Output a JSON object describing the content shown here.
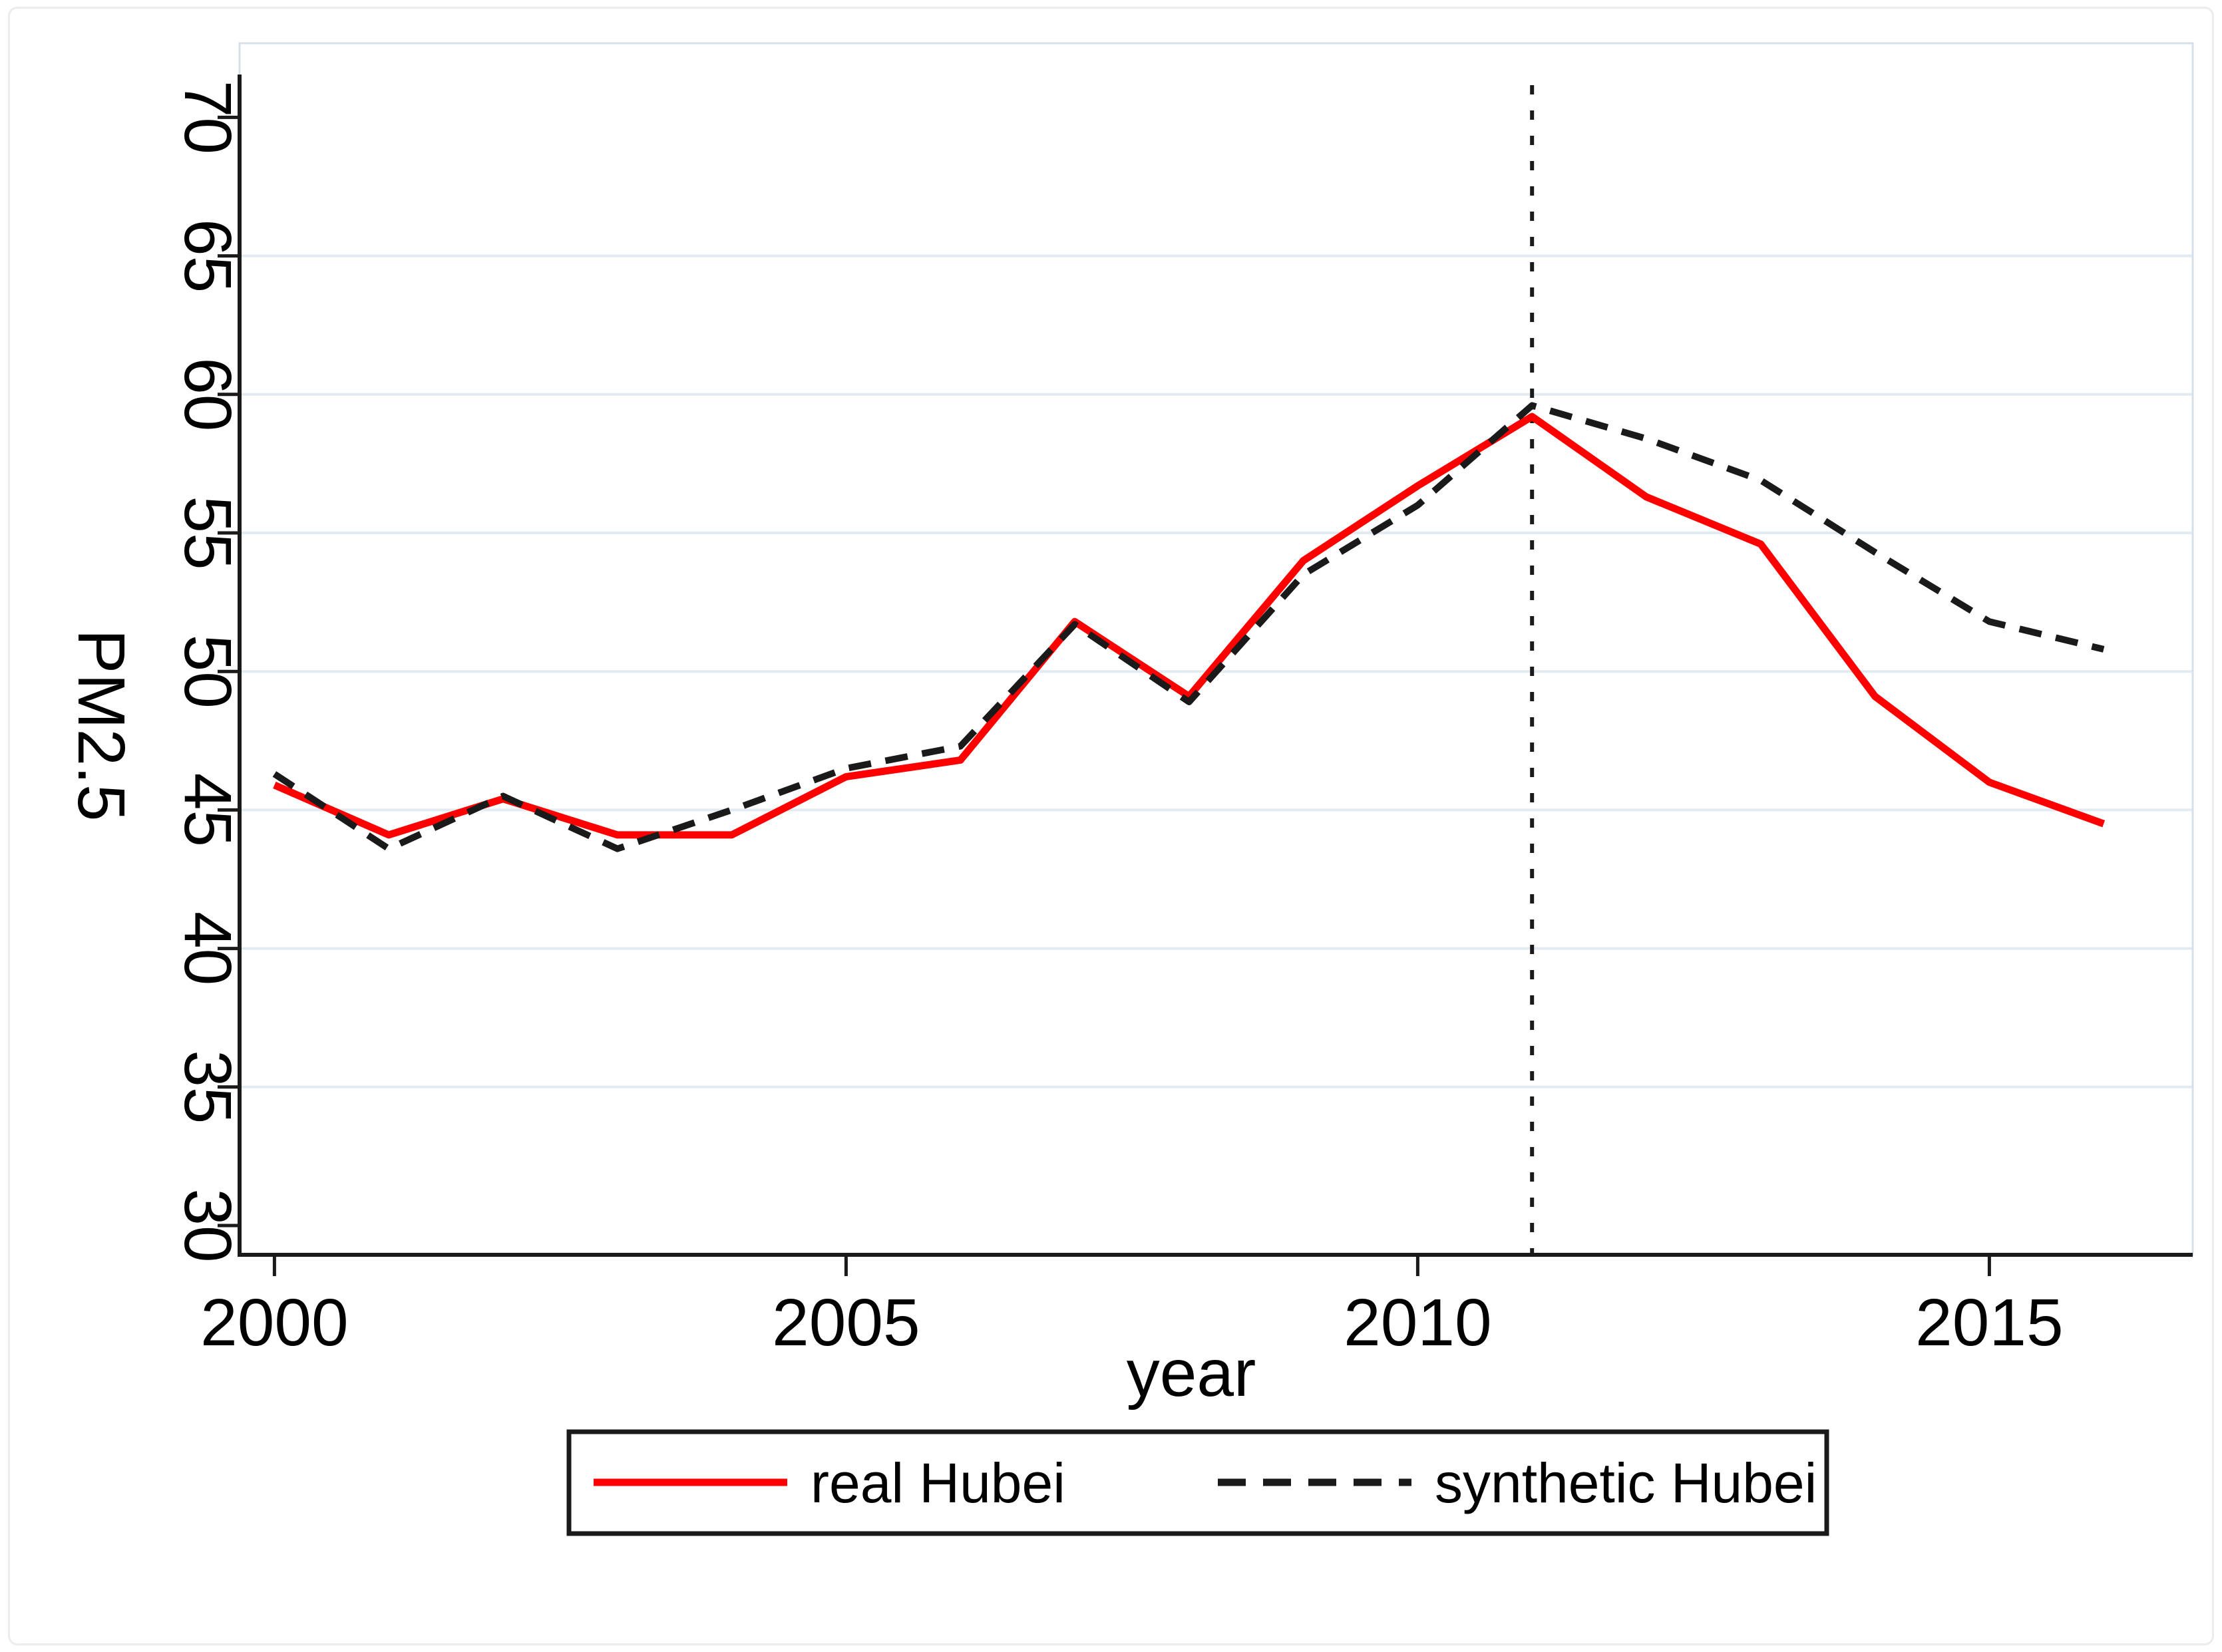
{
  "figure": {
    "background": "#ffffff",
    "frame_color": "#ececec"
  },
  "axes": {
    "x_title": "year",
    "y_title": "PM2.5"
  },
  "legend": {
    "position": "bottom",
    "real_label": "real Hubei",
    "synthetic_label": "synthetic Hubei"
  },
  "chart_data": {
    "type": "line",
    "title": "",
    "xlabel": "year",
    "ylabel": "PM2.5",
    "x": [
      2000,
      2001,
      2002,
      2003,
      2004,
      2005,
      2006,
      2007,
      2008,
      2009,
      2010,
      2011,
      2012,
      2013,
      2014,
      2015,
      2016
    ],
    "series": [
      {
        "name": "real Hubei",
        "color": "#fe0000",
        "line_style": "solid",
        "values": [
          45.9,
          44.1,
          45.4,
          44.1,
          44.1,
          46.2,
          46.8,
          51.8,
          49.1,
          54.0,
          56.7,
          59.2,
          56.3,
          54.6,
          49.1,
          46.0,
          44.5
        ]
      },
      {
        "name": "synthetic Hubei",
        "color": "#1a1a1a",
        "line_style": "dashed",
        "values": [
          46.3,
          43.6,
          45.5,
          43.6,
          45.0,
          46.5,
          47.3,
          51.7,
          48.9,
          53.5,
          56.0,
          59.6,
          58.4,
          56.9,
          54.3,
          51.8,
          50.8
        ]
      }
    ],
    "vline": {
      "x": 2011,
      "line_style": "short-dash",
      "color": "#1a1a1a"
    },
    "xlim": [
      1999.7,
      2016.8
    ],
    "ylim": [
      28.9,
      72.7
    ],
    "xticks": [
      2000,
      2005,
      2010,
      2015
    ],
    "yticks": [
      30,
      35,
      40,
      45,
      50,
      55,
      60,
      65,
      70
    ],
    "grid_yvalues": [
      35,
      40,
      45,
      50,
      55,
      60,
      65
    ],
    "grid_on": true,
    "grid_color": "#e3ebf2",
    "plot_border_color": "#d5e0e9",
    "axis_color": "#1a1a1a",
    "legend_position": "bottom"
  }
}
